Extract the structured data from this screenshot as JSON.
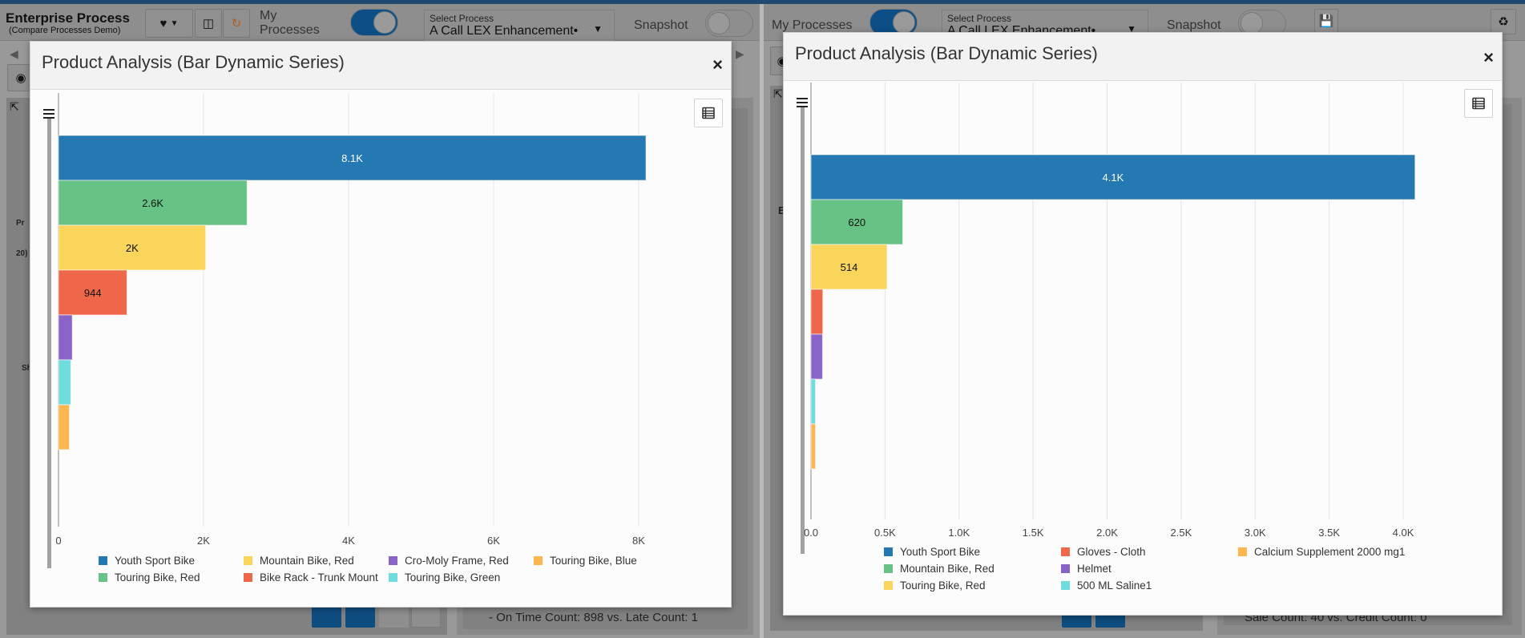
{
  "app": {
    "title": "Enterprise Process",
    "subtitle": "(Compare Processes Demo)",
    "my_processes_label_left": "My Processes",
    "my_processes_label_right": "My Processes",
    "my_processes_on": true,
    "select_process_caption": "Select Process",
    "select_process_value": "A Call LEX Enhancement•",
    "snapshot_label": "Snapshot",
    "snapshot_on": false,
    "bg_left_text": "- On Time Count: 898 vs. Late Count: 1",
    "bg_right_text": "Sale Count: 40 vs. Credit Count: 0",
    "bg_small_labels": [
      "Pr",
      "20)",
      "Sh",
      "E"
    ]
  },
  "dialogs": [
    {
      "title": "Product Analysis (Bar Dynamic Series)",
      "close_label": "×",
      "chart_data": {
        "type": "bar",
        "orientation": "horizontal",
        "title": "Product Analysis (Bar Dynamic Series)",
        "xlabel": "",
        "ylabel": "",
        "xlim": [
          0,
          8500
        ],
        "grid": true,
        "legend_position": "bottom",
        "x_ticks": [
          {
            "value": 0,
            "label": "0"
          },
          {
            "value": 2000,
            "label": "2K"
          },
          {
            "value": 4000,
            "label": "4K"
          },
          {
            "value": 6000,
            "label": "6K"
          },
          {
            "value": 8000,
            "label": "8K"
          }
        ],
        "series": [
          {
            "name": "Youth Sport Bike",
            "value": 8100,
            "label": "8.1K",
            "color": "#2479b2",
            "label_color": "#ffffff"
          },
          {
            "name": "Touring Bike, Red",
            "value": 2600,
            "label": "2.6K",
            "color": "#67c285",
            "label_color": "#111111"
          },
          {
            "name": "Mountain Bike, Red",
            "value": 2030,
            "label": "2K",
            "color": "#f9d55b",
            "label_color": "#111111"
          },
          {
            "name": "Bike Rack - Trunk Mount",
            "value": 944,
            "label": "944",
            "color": "#ef674a",
            "label_color": "#111111"
          },
          {
            "name": "Cro-Moly Frame, Red",
            "value": 190,
            "label": "",
            "color": "#8963c8",
            "label_color": "#111111"
          },
          {
            "name": "Touring Bike, Green",
            "value": 170,
            "label": "",
            "color": "#6fdcdd",
            "label_color": "#111111"
          },
          {
            "name": "Touring Bike, Blue",
            "value": 150,
            "label": "",
            "color": "#feb651",
            "label_color": "#111111"
          }
        ],
        "legend_order": [
          "Youth Sport Bike",
          "Mountain Bike, Red",
          "Cro-Moly Frame, Red",
          "Touring Bike, Blue",
          "Touring Bike, Red",
          "Bike Rack - Trunk Mount",
          "Touring Bike, Green"
        ]
      }
    },
    {
      "title": "Product Analysis (Bar Dynamic Series)",
      "close_label": "×",
      "chart_data": {
        "type": "bar",
        "orientation": "horizontal",
        "title": "Product Analysis (Bar Dynamic Series)",
        "xlabel": "",
        "ylabel": "",
        "xlim": [
          0,
          4500
        ],
        "grid": true,
        "legend_position": "bottom",
        "x_ticks": [
          {
            "value": 0,
            "label": "0.0"
          },
          {
            "value": 500,
            "label": "0.5K"
          },
          {
            "value": 1000,
            "label": "1.0K"
          },
          {
            "value": 1500,
            "label": "1.5K"
          },
          {
            "value": 2000,
            "label": "2.0K"
          },
          {
            "value": 2500,
            "label": "2.5K"
          },
          {
            "value": 3000,
            "label": "3.0K"
          },
          {
            "value": 3500,
            "label": "3.5K"
          },
          {
            "value": 4000,
            "label": "4.0K"
          }
        ],
        "series": [
          {
            "name": "Youth Sport Bike",
            "value": 4080,
            "label": "4.1K",
            "color": "#2479b2",
            "label_color": "#ffffff"
          },
          {
            "name": "Mountain Bike, Red",
            "value": 620,
            "label": "620",
            "color": "#67c285",
            "label_color": "#111111"
          },
          {
            "name": "Touring Bike, Red",
            "value": 514,
            "label": "514",
            "color": "#f9d55b",
            "label_color": "#111111"
          },
          {
            "name": "Gloves - Cloth",
            "value": 80,
            "label": "",
            "color": "#ef674a",
            "label_color": "#111111"
          },
          {
            "name": "Helmet",
            "value": 78,
            "label": "",
            "color": "#8963c8",
            "label_color": "#111111"
          },
          {
            "name": "500 ML Saline1",
            "value": 30,
            "label": "",
            "color": "#6fdcdd",
            "label_color": "#111111"
          },
          {
            "name": "Calcium Supplement 2000 mg1",
            "value": 30,
            "label": "",
            "color": "#feb651",
            "label_color": "#111111"
          }
        ],
        "legend_order": [
          "Youth Sport Bike",
          "Gloves - Cloth",
          "Calcium Supplement 2000 mg1",
          "Mountain Bike, Red",
          "Helmet",
          "Touring Bike, Red",
          "500 ML Saline1"
        ]
      }
    }
  ]
}
